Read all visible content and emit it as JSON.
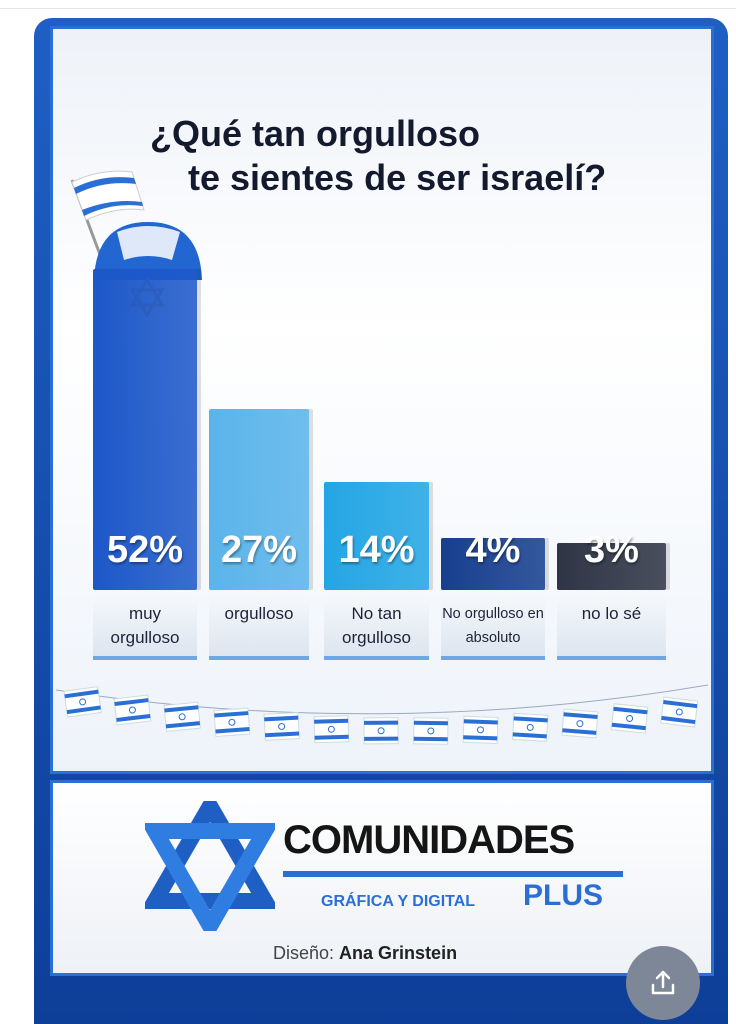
{
  "chart_data": {
    "type": "bar",
    "title_line1": "¿Qué tan orgulloso",
    "title_line2": "te sientes de ser israelí?",
    "categories": [
      "muy orgulloso",
      "orgulloso",
      "No tan orgulloso",
      "No orgulloso en absoluto",
      "no lo sé"
    ],
    "values": [
      52,
      27,
      14,
      4,
      3
    ],
    "value_labels": [
      "52%",
      "27%",
      "14%",
      "4%",
      "3%"
    ],
    "unit": "%",
    "colors": [
      "#1d58c9",
      "#5ab4ea",
      "#23a6e4",
      "#173f8e",
      "#2f3545"
    ],
    "xlabel": "",
    "ylabel": ""
  },
  "footer": {
    "brand": "COMUNIDADES",
    "subtitle": "GRÁFICA Y DIGITAL",
    "plus": "PLUS",
    "credit_label": "Diseño:",
    "credit_name": "Ana Grinstein"
  }
}
